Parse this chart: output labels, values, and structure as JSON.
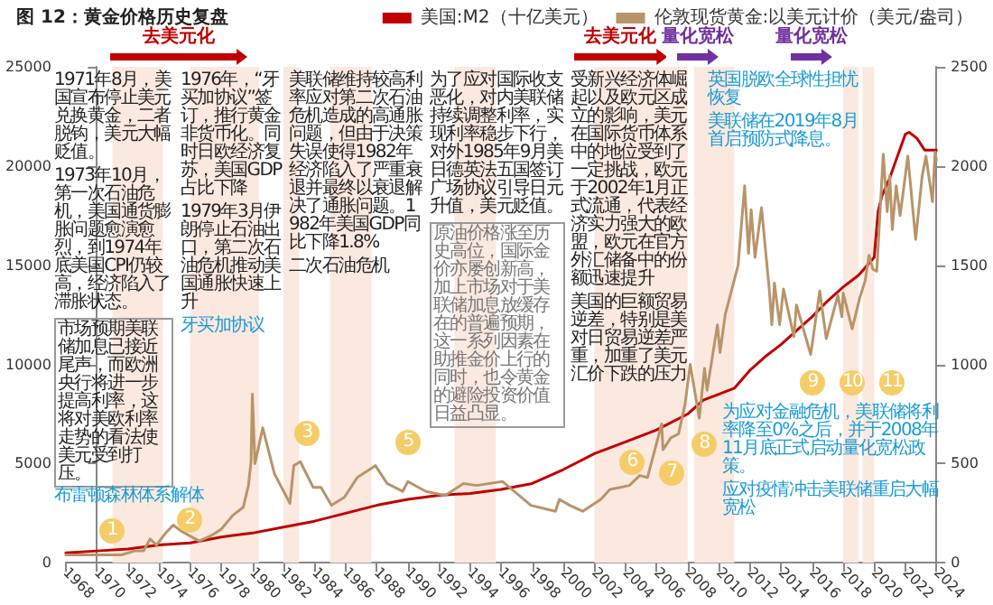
{
  "chart_data": {
    "type": "line",
    "title": "图 12：黄金价格历史复盘",
    "xlim": [
      "1968",
      "2024"
    ],
    "xticks": [
      "1968",
      "1970",
      "1972",
      "1974",
      "1976",
      "1978",
      "1980",
      "1982",
      "1984",
      "1986",
      "1988",
      "1990",
      "1992",
      "1994",
      "1996",
      "1998",
      "2000",
      "2002",
      "2004",
      "2006",
      "2008",
      "2010",
      "2012",
      "2014",
      "2016",
      "2018",
      "2020",
      "2022",
      "2024"
    ],
    "ylim": [
      0,
      25000
    ],
    "yticks": [
      0,
      5000,
      10000,
      15000,
      20000,
      25000
    ],
    "y2lim": [
      0,
      2500
    ],
    "y2ticks": [
      0,
      500,
      1000,
      1500,
      2000,
      2500
    ],
    "legend": "top",
    "marker": "none",
    "line_style": "solid",
    "series": [
      {
        "name": "美国:M2（十亿美元）",
        "color": "#c00000",
        "x": [
          "1968-01",
          "1970-01",
          "1972-01",
          "1974-01",
          "1976-01",
          "1978-01",
          "1980-01",
          "1982-01",
          "1984-01",
          "1986-01",
          "1988-01",
          "1990-01",
          "1992-01",
          "1994-01",
          "1996-01",
          "1998-01",
          "2000-01",
          "2002-01",
          "2004-01",
          "2006-01",
          "2008-01",
          "2009-01",
          "2010-01",
          "2011-01",
          "2012-01",
          "2013-01",
          "2014-01",
          "2015-01",
          "2016-01",
          "2017-01",
          "2018-01",
          "2019-01",
          "2020-01",
          "2020-04",
          "2020-07",
          "2021-01",
          "2021-07",
          "2022-01",
          "2022-04",
          "2022-10",
          "2023-04",
          "2023-10",
          "2024-01"
        ],
        "values": [
          500,
          600,
          700,
          900,
          1000,
          1300,
          1500,
          1800,
          2100,
          2500,
          2900,
          3200,
          3400,
          3500,
          3700,
          4000,
          4700,
          5500,
          6100,
          6700,
          7500,
          8200,
          8500,
          8800,
          9700,
          10400,
          11000,
          11700,
          12400,
          13200,
          13900,
          14500,
          15400,
          17700,
          18500,
          19400,
          20500,
          21600,
          21700,
          21400,
          20800,
          20800,
          20800
        ]
      },
      {
        "name": "伦敦现货黄金:以美元计价（美元/盎司）",
        "color": "#b8946a",
        "axis": "y2",
        "x": [
          "1968-01",
          "1968-06",
          "1969-03",
          "1970-01",
          "1971-01",
          "1971-08",
          "1972-06",
          "1973-01",
          "1973-06",
          "1973-11",
          "1974-06",
          "1974-12",
          "1975-06",
          "1976-08",
          "1977-06",
          "1978-01",
          "1978-10",
          "1979-06",
          "1979-10",
          "1979-12",
          "1980-01",
          "1980-03",
          "1980-09",
          "1981-06",
          "1982-06",
          "1982-09",
          "1983-02",
          "1983-12",
          "1984-06",
          "1985-02",
          "1985-12",
          "1986-10",
          "1987-12",
          "1988-09",
          "1989-09",
          "1990-01",
          "1991-03",
          "1992-06",
          "1993-08",
          "1994-06",
          "1996-02",
          "1997-01",
          "1997-12",
          "1999-07",
          "1999-10",
          "2000-06",
          "2001-04",
          "2002-06",
          "2003-01",
          "2003-09",
          "2004-04",
          "2004-12",
          "2005-06",
          "2006-05",
          "2006-06",
          "2006-12",
          "2007-06",
          "2007-11",
          "2008-03",
          "2008-10",
          "2009-02",
          "2009-04",
          "2009-12",
          "2010-02",
          "2010-06",
          "2010-12",
          "2011-04",
          "2011-09",
          "2011-12",
          "2012-02",
          "2012-05",
          "2012-10",
          "2013-04",
          "2013-06",
          "2013-08",
          "2013-12",
          "2014-03",
          "2014-11",
          "2015-01",
          "2015-12",
          "2016-07",
          "2016-12",
          "2017-09",
          "2017-12",
          "2018-01",
          "2018-08",
          "2019-02",
          "2019-06",
          "2019-09",
          "2019-12",
          "2020-03",
          "2020-08",
          "2020-11",
          "2021-01",
          "2021-03",
          "2021-06",
          "2021-09",
          "2022-03",
          "2022-09",
          "2023-02",
          "2023-05",
          "2023-10",
          "2023-12",
          "2024-01"
        ],
        "values": [
          40,
          40,
          40,
          40,
          40,
          40,
          60,
          60,
          120,
          90,
          150,
          190,
          160,
          110,
          140,
          170,
          240,
          280,
          390,
          510,
          850,
          500,
          680,
          450,
          300,
          490,
          510,
          380,
          380,
          290,
          330,
          430,
          490,
          400,
          360,
          410,
          360,
          340,
          400,
          390,
          410,
          350,
          290,
          260,
          320,
          290,
          260,
          320,
          370,
          380,
          390,
          440,
          430,
          700,
          570,
          630,
          650,
          800,
          1000,
          730,
          980,
          870,
          1200,
          1060,
          1250,
          1400,
          1500,
          1900,
          1560,
          1780,
          1540,
          1790,
          1380,
          1200,
          1410,
          1200,
          1380,
          1140,
          1300,
          1050,
          1370,
          1130,
          1350,
          1240,
          1360,
          1180,
          1340,
          1420,
          1550,
          1480,
          1470,
          2060,
          1770,
          1950,
          1680,
          1900,
          1750,
          2050,
          1630,
          1950,
          2050,
          1820,
          2070,
          2030
        ]
      }
    ],
    "bands": [
      {
        "axis": "x",
        "from": "1971-01",
        "to": "1974-04",
        "color": "#fbe9df"
      },
      {
        "axis": "x",
        "from": "1976-01",
        "to": "1980-06",
        "color": "#fbe9df"
      },
      {
        "axis": "x",
        "from": "1982-01",
        "to": "1983-01",
        "color": "#fbe9df"
      },
      {
        "axis": "x",
        "from": "1985-01",
        "to": "1987-09",
        "color": "#fbe9df"
      },
      {
        "axis": "x",
        "from": "1993-01",
        "to": "1995-09",
        "color": "#fbe9df"
      },
      {
        "axis": "x",
        "from": "2002-01",
        "to": "2008-01",
        "color": "#fbe9df"
      },
      {
        "axis": "x",
        "from": "2008-06",
        "to": "2011-01",
        "color": "#fbe9df"
      },
      {
        "axis": "x",
        "from": "2018-01",
        "to": "2019-01",
        "color": "#fbe9df"
      },
      {
        "axis": "x",
        "from": "2019-04",
        "to": "2020-01",
        "color": "#fbe9df"
      }
    ],
    "annotations": [
      "1971年8月，美国宣布停止美元兑换黄金，二者脱钩，美元大幅贬值。",
      "1973年10月，第一次石油危机，美国通货膨胀问题愈演愈烈，到1974年底美国CPI仍较高，经济陷入了滞胀状态。",
      "1976年，“牙买加协议”签订，推行黄金非货币化。同时日欧经济复苏，美国GDP占比下降",
      "1979年3月伊朗停止石油出口，第二次石油危机推动美国通胀快速上升",
      "美联储维持较高利率应对第二次石油危机造成的高通胀问题，但由于决策失误使得1982年经济陷入了严重衰退并最终以衰退解决了通胀问题。1982年美国GDP同比下降1.8%",
      "为了应对国际收支恶化，对内美联储持续调整利率，实现利率稳步下行，对外1985年9月美日德英法五国签订广场协议引导日元升值，美元贬值。",
      "美国的巨额贸易逆差，特别是美对日贸易逆差严重，加重了美元汇价下跌的压力",
      "受新兴经济体崛起以及欧元区成立的影响，美元在国际货币体系中的地位受到了一定挑战，欧元于2002年1月正式流通，代表经济实力强大的欧盟，欧元在官方外汇储备中的份额迅速提升",
      "市场预期美联储加息已接近尾声，而欧洲央行将进一步提高利率，这将对美欧利率走势的看法使美元受到打压。",
      "原油价格涨至历史高位，国际金价亦屡创新高，加上市场对于美联储加息放缓存在的普遍预期，这一系列因素在助推金价上行的同时，也令黄金的避险投资价值日益凸显。",
      "布雷顿森林体系解体",
      "牙买加协议",
      "二次石油危机",
      "为应对金融危机，美联储将利率降至0%之后，并于2008年11月底正式启动量化宽松政策。",
      "英国脱欧全球性担忧恢复",
      "美联储在2019年8月首启预防式降息。",
      "应对疫情冲击美联储重启大幅宽松",
      "去美元化",
      "去美元化",
      "量化宽松",
      "量化宽松",
      "1",
      "2",
      "3",
      "5",
      "6",
      "7",
      "8",
      "9",
      "10",
      "11"
    ]
  }
}
